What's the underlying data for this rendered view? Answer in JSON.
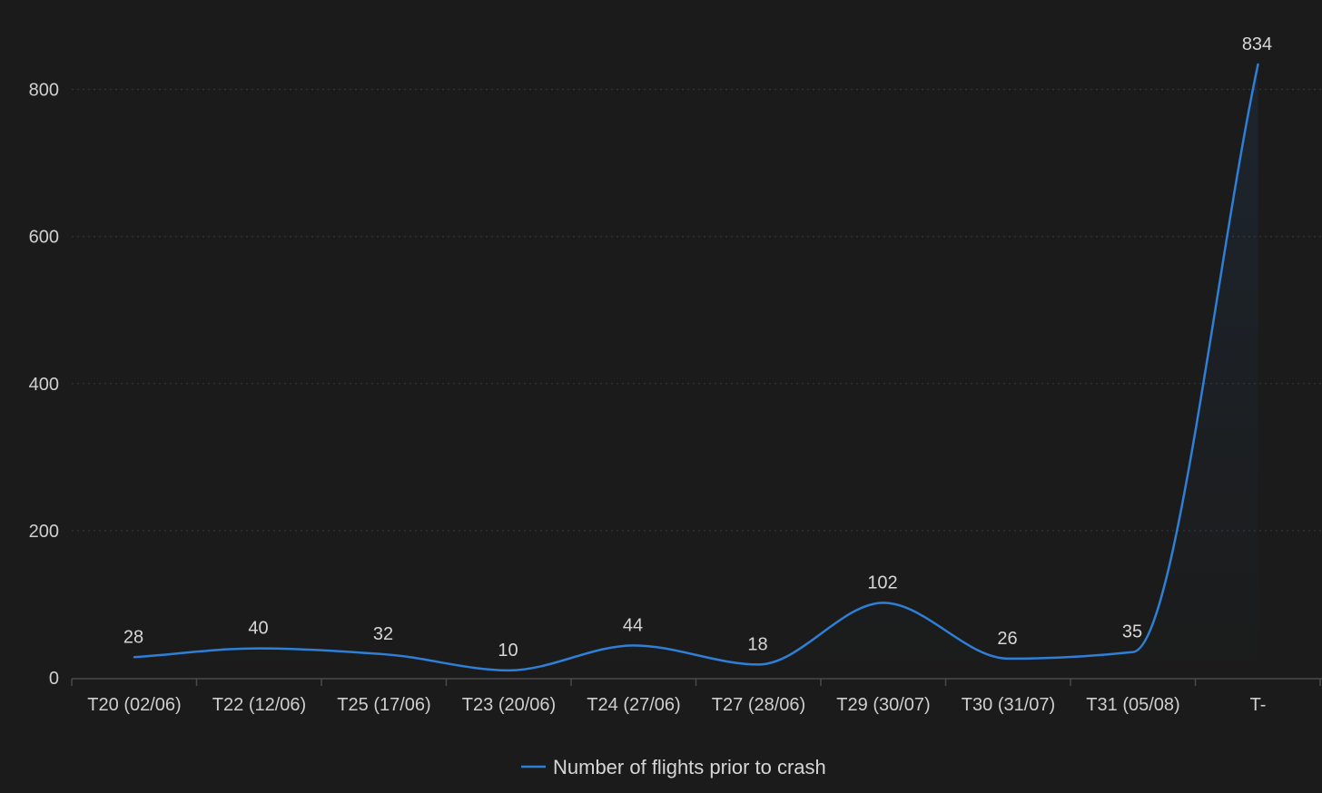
{
  "chart_data": {
    "type": "line",
    "categories": [
      "T20 (02/06)",
      "T22 (12/06)",
      "T25 (17/06)",
      "T23 (20/06)",
      "T24 (27/06)",
      "T27 (28/06)",
      "T29 (30/07)",
      "T30 (31/07)",
      "T31 (05/08)",
      "T-"
    ],
    "series": [
      {
        "name": "Number of flights prior to crash",
        "values": [
          28,
          40,
          32,
          10,
          44,
          18,
          102,
          26,
          35,
          834
        ],
        "color": "#2f7fd6"
      }
    ],
    "data_labels": [
      "28",
      "40",
      "32",
      "10",
      "44",
      "18",
      "102",
      "26",
      "35",
      "834"
    ],
    "y_ticks": [
      0,
      200,
      400,
      600,
      800
    ],
    "ylim": [
      0,
      834
    ],
    "grid": true,
    "legend_position": "bottom-center",
    "smooth": true,
    "area_fill": true
  }
}
